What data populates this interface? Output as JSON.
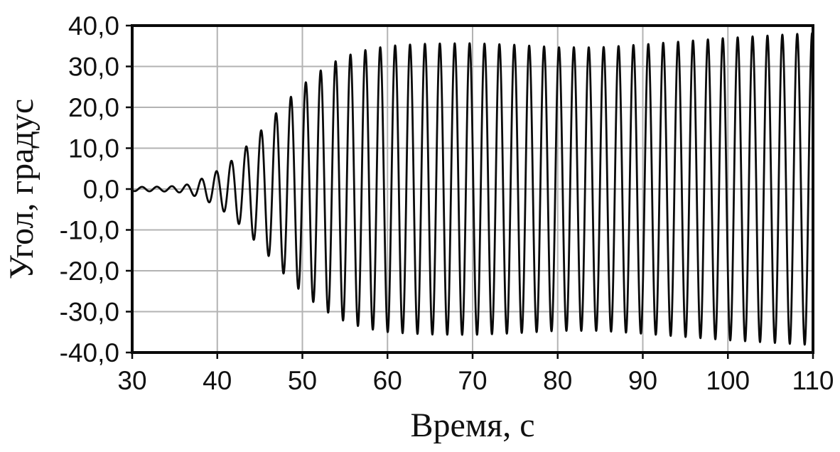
{
  "chart_data": {
    "type": "line",
    "title": "",
    "xlabel": "Время, с",
    "ylabel": "Угол, градус",
    "xlim": [
      30,
      110
    ],
    "ylim": [
      -40,
      40
    ],
    "grid": true,
    "legend": "none",
    "x_ticks": [
      30,
      40,
      50,
      60,
      70,
      80,
      90,
      100,
      110
    ],
    "x_tick_labels": [
      "30",
      "40",
      "50",
      "60",
      "70",
      "80",
      "90",
      "100",
      "110"
    ],
    "y_ticks": [
      40,
      30,
      20,
      10,
      0,
      -10,
      -20,
      -30,
      -40
    ],
    "y_tick_labels": [
      "40,0",
      "30,0",
      "20,0",
      "10,0",
      "0,0",
      "-10,0",
      "-20,0",
      "-30,0",
      "-40,0"
    ],
    "series": [
      {
        "name": "Угол",
        "model": "amplitude-modulated-sine",
        "period_s": 1.75,
        "phase_ref_s": 109.9,
        "phase_at_ref_deg": 90,
        "envelope": {
          "t": [
            30,
            34,
            36,
            37,
            38,
            39,
            40,
            41,
            42,
            43,
            44,
            45,
            46,
            47,
            48,
            49,
            50,
            51,
            52,
            53,
            54,
            55,
            56,
            57,
            58,
            60,
            62,
            65,
            70,
            75,
            80,
            85,
            90,
            95,
            100,
            105,
            110
          ],
          "amplitude_deg": [
            0.5,
            0.6,
            0.9,
            1.4,
            2.4,
            3.2,
            4.5,
            5.8,
            7.5,
            9.5,
            11.8,
            14.0,
            16.3,
            18.8,
            21.2,
            23.3,
            25.4,
            27.2,
            28.8,
            30.2,
            31.4,
            32.4,
            33.2,
            33.8,
            34.3,
            35.0,
            35.3,
            35.6,
            35.7,
            35.3,
            34.7,
            34.7,
            35.4,
            36.2,
            37.0,
            37.6,
            38.2
          ]
        }
      }
    ],
    "style": {
      "line_color": "#0a0a0a",
      "line_width": 2.8,
      "grid_color": "#b3b3b3",
      "axis_color": "#0a0a0a",
      "text_color": "#111111",
      "background": "#ffffff"
    }
  }
}
